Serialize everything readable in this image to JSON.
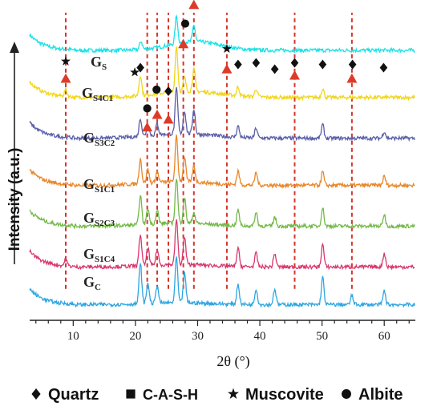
{
  "chart_data": {
    "type": "line",
    "title": "",
    "xlabel": "2θ (°)",
    "ylabel": "Intensity (a.u.)",
    "xlim": [
      3,
      65
    ],
    "xticks": [
      10,
      20,
      30,
      40,
      50,
      60
    ],
    "y_ticks_shown": false,
    "grid": false,
    "series": [
      {
        "name_main": "G",
        "name_sub": "S",
        "color": "#1de1e6",
        "offset": 0.86,
        "amp": 0.04,
        "peakamp": 0.55,
        "peaks": [
          [
            20.9,
            0.3
          ],
          [
            26.6,
            1.0
          ],
          [
            29.4,
            0.6
          ]
        ],
        "hump": [
          29.5,
          0.28,
          4.0
        ]
      },
      {
        "name_main": "G",
        "name_sub": "S4C1",
        "color": "#f1d61c",
        "offset": 0.71,
        "amp": 0.05,
        "peakamp": 0.9,
        "peaks": [
          [
            8.8,
            0.15
          ],
          [
            20.8,
            0.45
          ],
          [
            26.6,
            1.0
          ],
          [
            27.9,
            0.3
          ],
          [
            29.4,
            0.5
          ],
          [
            36.5,
            0.2
          ],
          [
            39.4,
            0.18
          ],
          [
            50.1,
            0.2
          ]
        ],
        "hump": [
          28.5,
          0.2,
          5.0
        ]
      },
      {
        "name_main": "G",
        "name_sub": "S3C2",
        "color": "#5b5ea8",
        "offset": 0.58,
        "amp": 0.05,
        "peakamp": 0.9,
        "peaks": [
          [
            20.8,
            0.4
          ],
          [
            22.0,
            0.25
          ],
          [
            23.5,
            0.25
          ],
          [
            26.6,
            1.0
          ],
          [
            27.9,
            0.5
          ],
          [
            29.4,
            0.55
          ],
          [
            36.5,
            0.25
          ],
          [
            39.4,
            0.22
          ],
          [
            50.1,
            0.3
          ],
          [
            60.0,
            0.15
          ]
        ],
        "hump": [
          27.5,
          0.15,
          5.0
        ]
      },
      {
        "name_main": "G",
        "name_sub": "S1C1",
        "color": "#e8872a",
        "offset": 0.43,
        "amp": 0.05,
        "peakamp": 0.9,
        "peaks": [
          [
            20.8,
            0.55
          ],
          [
            22.0,
            0.3
          ],
          [
            23.5,
            0.25
          ],
          [
            26.6,
            1.0
          ],
          [
            27.9,
            0.55
          ],
          [
            29.4,
            0.35
          ],
          [
            36.5,
            0.3
          ],
          [
            39.4,
            0.28
          ],
          [
            50.1,
            0.3
          ],
          [
            60.0,
            0.2
          ]
        ],
        "hump": [
          27.0,
          0.12,
          5.0
        ]
      },
      {
        "name_main": "G",
        "name_sub": "S2C3",
        "color": "#74b94a",
        "offset": 0.3,
        "amp": 0.05,
        "peakamp": 0.9,
        "peaks": [
          [
            20.8,
            0.65
          ],
          [
            22.0,
            0.35
          ],
          [
            23.5,
            0.3
          ],
          [
            26.6,
            1.0
          ],
          [
            27.9,
            0.55
          ],
          [
            29.4,
            0.25
          ],
          [
            36.5,
            0.35
          ],
          [
            39.4,
            0.3
          ],
          [
            42.4,
            0.2
          ],
          [
            50.1,
            0.4
          ],
          [
            60.0,
            0.25
          ]
        ],
        "hump": [
          27.0,
          0.1,
          5.0
        ]
      },
      {
        "name_main": "G",
        "name_sub": "S1C4",
        "color": "#d8386e",
        "offset": 0.17,
        "amp": 0.05,
        "peakamp": 0.9,
        "peaks": [
          [
            8.8,
            0.15
          ],
          [
            20.8,
            0.7
          ],
          [
            22.0,
            0.4
          ],
          [
            23.5,
            0.35
          ],
          [
            26.6,
            1.0
          ],
          [
            27.9,
            0.6
          ],
          [
            36.5,
            0.4
          ],
          [
            39.4,
            0.3
          ],
          [
            42.4,
            0.3
          ],
          [
            50.1,
            0.5
          ],
          [
            60.0,
            0.3
          ]
        ],
        "hump": [
          27.0,
          0.08,
          5.0
        ]
      },
      {
        "name_main": "G",
        "name_sub": "C",
        "color": "#2ea6e2",
        "offset": 0.05,
        "amp": 0.06,
        "peakamp": 0.9,
        "peaks": [
          [
            20.8,
            0.9
          ],
          [
            22.0,
            0.45
          ],
          [
            23.5,
            0.4
          ],
          [
            26.6,
            1.0
          ],
          [
            27.9,
            0.65
          ],
          [
            36.5,
            0.45
          ],
          [
            39.4,
            0.35
          ],
          [
            42.4,
            0.35
          ],
          [
            50.1,
            0.6
          ],
          [
            54.8,
            0.2
          ],
          [
            60.0,
            0.3
          ]
        ],
        "hump": [
          27.0,
          0.06,
          5.0
        ]
      }
    ],
    "reference_lines_x": [
      8.8,
      21.9,
      23.5,
      25.3,
      27.7,
      29.4,
      34.7,
      45.6,
      54.8
    ],
    "markers": [
      {
        "symbol": "star",
        "x": 8.8,
        "y": 0.825
      },
      {
        "symbol": "diamond",
        "x": 20.8,
        "y": 0.805
      },
      {
        "symbol": "star",
        "x": 19.9,
        "y": 0.79
      },
      {
        "symbol": "diamond",
        "x": 26.6,
        "y": 1.07
      },
      {
        "symbol": "square",
        "x": 29.4,
        "y": 1.07
      },
      {
        "symbol": "circle",
        "x": 28.0,
        "y": 0.945
      },
      {
        "symbol": "star",
        "x": 34.7,
        "y": 0.865
      },
      {
        "symbol": "diamond",
        "x": 36.5,
        "y": 0.815
      },
      {
        "symbol": "diamond",
        "x": 39.4,
        "y": 0.82
      },
      {
        "symbol": "diamond",
        "x": 42.4,
        "y": 0.8
      },
      {
        "symbol": "diamond",
        "x": 45.6,
        "y": 0.82
      },
      {
        "symbol": "diamond",
        "x": 50.1,
        "y": 0.815
      },
      {
        "symbol": "diamond",
        "x": 54.9,
        "y": 0.815
      },
      {
        "symbol": "diamond",
        "x": 59.9,
        "y": 0.805
      },
      {
        "symbol": "circle",
        "x": 23.4,
        "y": 0.735
      },
      {
        "symbol": "diamond",
        "x": 25.3,
        "y": 0.73
      },
      {
        "symbol": "circle",
        "x": 21.9,
        "y": 0.675
      },
      {
        "symbol": "triangle",
        "x": 8.8,
        "y": 0.77
      },
      {
        "symbol": "triangle",
        "x": 21.9,
        "y": 0.615
      },
      {
        "symbol": "triangle",
        "x": 23.5,
        "y": 0.655
      },
      {
        "symbol": "triangle",
        "x": 25.3,
        "y": 0.64
      },
      {
        "symbol": "triangle",
        "x": 27.7,
        "y": 0.88
      },
      {
        "symbol": "triangle",
        "x": 29.4,
        "y": 1.005
      },
      {
        "symbol": "triangle",
        "x": 34.7,
        "y": 0.8
      },
      {
        "symbol": "triangle",
        "x": 45.6,
        "y": 0.78
      },
      {
        "symbol": "triangle",
        "x": 54.8,
        "y": 0.77
      }
    ],
    "legend_position": "bottom",
    "legend": [
      {
        "symbol": "diamond",
        "label": "Quartz"
      },
      {
        "symbol": "square",
        "label": "C-A-S-H"
      },
      {
        "symbol": "star",
        "label": "Muscovite"
      },
      {
        "symbol": "circle",
        "label": "Albite"
      }
    ]
  },
  "colors": {
    "reference_line": "#d4342a",
    "triangle": "#dd3b2a",
    "marker": "#111111",
    "axis": "#222222"
  }
}
